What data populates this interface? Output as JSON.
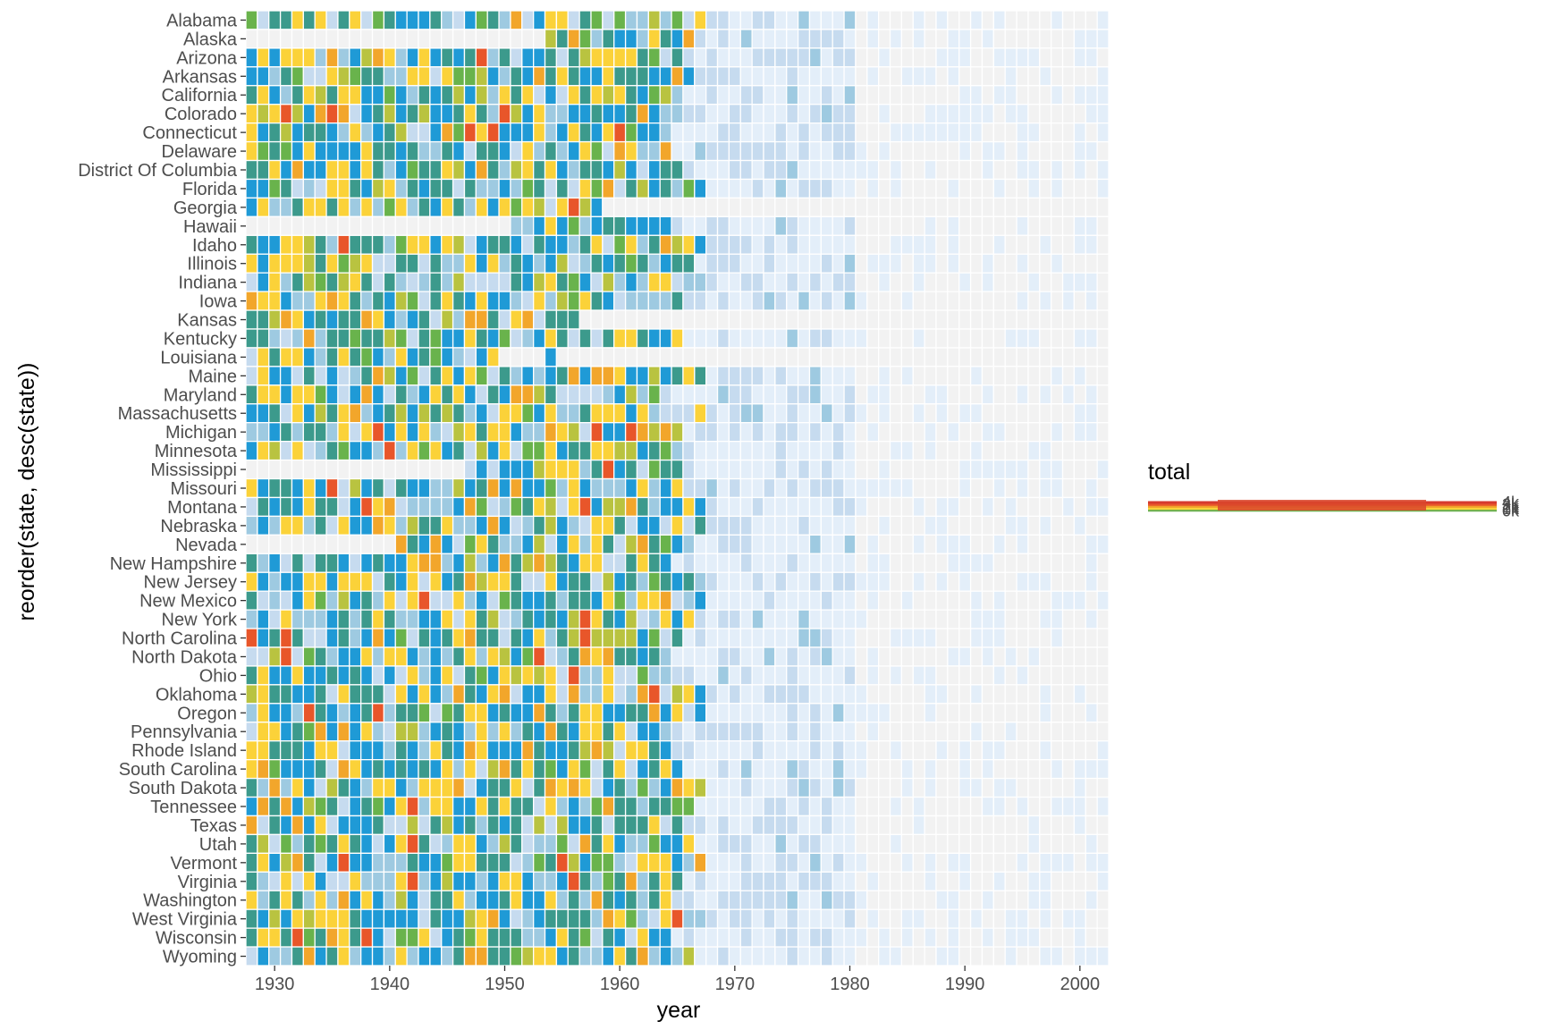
{
  "chart_data": {
    "type": "heatmap",
    "title": "",
    "xlabel": "year",
    "ylabel": "reorder(state, desc(state))",
    "x_range": [
      1928,
      2002
    ],
    "x_ticks": [
      1930,
      1940,
      1950,
      1960,
      1970,
      1980,
      1990,
      2000
    ],
    "states": [
      "Alabama",
      "Alaska",
      "Arizona",
      "Arkansas",
      "California",
      "Colorado",
      "Connecticut",
      "Delaware",
      "District Of Columbia",
      "Florida",
      "Georgia",
      "Hawaii",
      "Idaho",
      "Illinois",
      "Indiana",
      "Iowa",
      "Kansas",
      "Kentucky",
      "Louisiana",
      "Maine",
      "Maryland",
      "Massachusetts",
      "Michigan",
      "Minnesota",
      "Mississippi",
      "Missouri",
      "Montana",
      "Nebraska",
      "Nevada",
      "New Hampshire",
      "New Jersey",
      "New Mexico",
      "New York",
      "North Carolina",
      "North Dakota",
      "Ohio",
      "Oklahoma",
      "Oregon",
      "Pennsylvania",
      "Rhode Island",
      "South Carolina",
      "South Dakota",
      "Tennessee",
      "Texas",
      "Utah",
      "Vermont",
      "Virginia",
      "Washington",
      "West Virginia",
      "Wisconsin",
      "Wyoming"
    ],
    "start_years": {
      "Alaska": 1954,
      "Hawaii": 1951,
      "Mississippi": 1947,
      "Nevada": 1941
    },
    "gap_years": {
      "Georgia": [
        [
          1959,
          2002
        ]
      ],
      "Louisiana": [
        [
          1950,
          1953
        ],
        [
          1955,
          2002
        ]
      ],
      "Kansas": [
        [
          1957,
          2002
        ]
      ]
    },
    "cell_encoding": "fill color = total",
    "palette": {
      "background_cell": "#f2f2f2",
      "pale_blue": "#e3eef9",
      "light_blue": "#c6dbef",
      "mid_blue": "#9ecae1",
      "blue": "#1f9ad6",
      "teal": "#3c9a8c",
      "green": "#69b34c",
      "yellow_green": "#b9c340",
      "yellow": "#fbd239",
      "orange": "#f2a62b",
      "red": "#e8562a"
    },
    "legend": {
      "title": "total",
      "placement": "right",
      "labels": [
        "0k",
        "1k",
        "2k",
        "3k",
        "4k"
      ],
      "colors": [
        "#6cb04f",
        "#fbd239",
        "#f0a02a",
        "#e8562a",
        "#d63a2f"
      ]
    },
    "peak_period": "1928–1967",
    "notable_highs": [
      {
        "state": "Montana",
        "year": 1938
      },
      {
        "state": "North Carolina",
        "year": 1928
      },
      {
        "state": "Utah",
        "year": 1942
      },
      {
        "state": "Vermont",
        "year": 1936
      },
      {
        "state": "Vermont",
        "year": 1955
      },
      {
        "state": "Wisconsin",
        "year": 1938
      }
    ]
  }
}
